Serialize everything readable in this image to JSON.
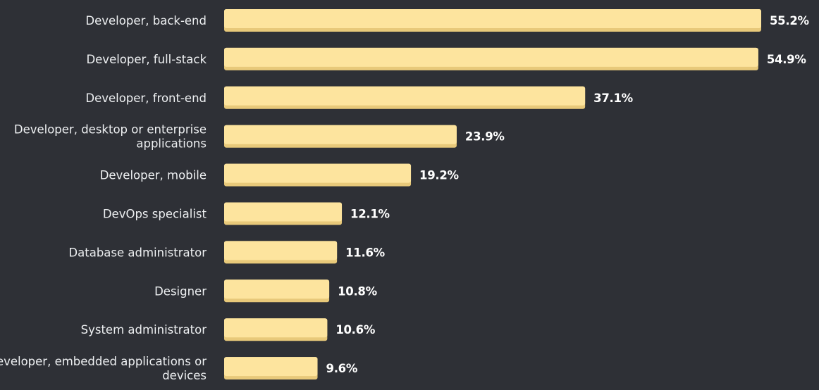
{
  "chart_data": {
    "type": "bar",
    "orientation": "horizontal",
    "categories": [
      [
        "Developer, back-end"
      ],
      [
        "Developer, full-stack"
      ],
      [
        "Developer, front-end"
      ],
      [
        "Developer, desktop or enterprise",
        "applications"
      ],
      [
        "Developer, mobile"
      ],
      [
        "DevOps specialist"
      ],
      [
        "Database administrator"
      ],
      [
        "Designer"
      ],
      [
        "System administrator"
      ],
      [
        "Developer, embedded applications or",
        "devices"
      ]
    ],
    "values": [
      55.2,
      54.9,
      37.1,
      23.9,
      19.2,
      12.1,
      11.6,
      10.8,
      10.6,
      9.6
    ],
    "value_labels": [
      "55.2%",
      "54.9%",
      "37.1%",
      "23.9%",
      "19.2%",
      "12.1%",
      "11.6%",
      "10.8%",
      "10.6%",
      "9.6%"
    ],
    "value_unit": "%",
    "xlim": [
      0,
      55.2
    ],
    "grid": false,
    "legend": "none",
    "colors": {
      "background": "#2e3036",
      "bar": "#fde49e",
      "bar_shadow": "#e8c97a",
      "category_text": "#eef0f2",
      "value_text": "#ffffff"
    }
  }
}
